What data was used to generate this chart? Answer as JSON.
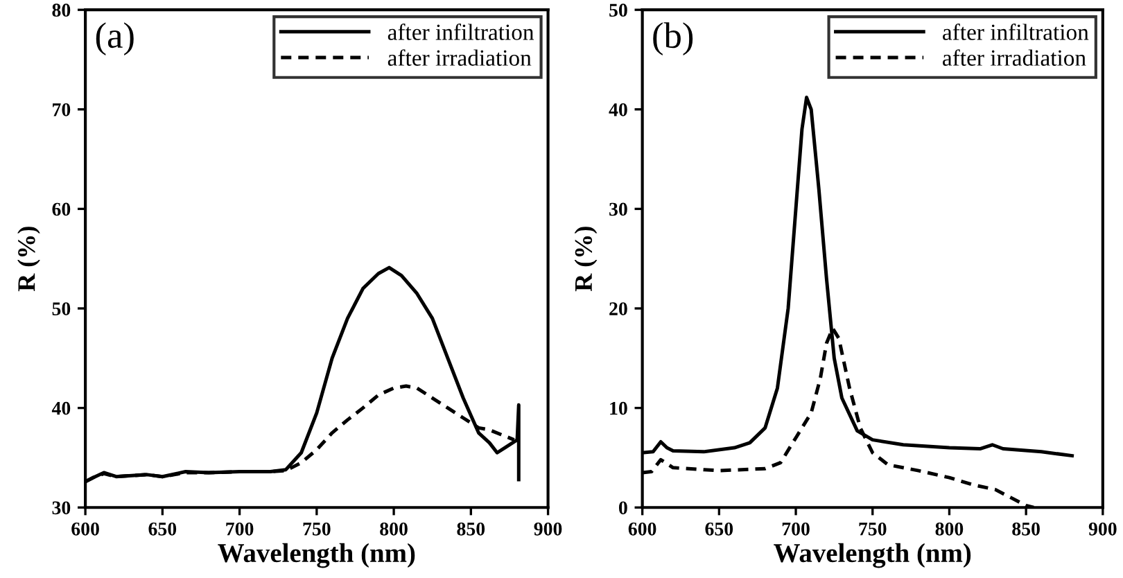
{
  "chart_data": [
    {
      "type": "line",
      "xlabel": "Wavelength (nm)",
      "ylabel": "R (%)",
      "annotations": [
        "(a)"
      ],
      "xlim": [
        600,
        900
      ],
      "xticks": [
        600,
        650,
        700,
        750,
        800,
        850,
        900
      ],
      "ylim": [
        30,
        80
      ],
      "yticks": [
        30,
        40,
        50,
        60,
        70,
        80
      ],
      "legend": "top right",
      "grid": false,
      "series": [
        {
          "name": "after infiltration",
          "color": "#000000",
          "line_style": "solid",
          "x": [
            600,
            605,
            612,
            620,
            640,
            650,
            665,
            680,
            700,
            720,
            730,
            740,
            750,
            760,
            770,
            780,
            790,
            797,
            805,
            815,
            825,
            835,
            845,
            855,
            862,
            867,
            872,
            880,
            881,
            881
          ],
          "values": [
            32.6,
            33,
            33.5,
            33.1,
            33.3,
            33.1,
            33.6,
            33.5,
            33.6,
            33.6,
            33.8,
            35.5,
            39.5,
            45,
            49,
            52,
            53.5,
            54.1,
            53.3,
            51.5,
            49,
            45,
            41,
            37.5,
            36.5,
            35.5,
            36,
            36.8,
            40.3,
            32.8
          ]
        },
        {
          "name": "after irradiation",
          "color": "#000000",
          "line_style": "dashed",
          "x": [
            600,
            605,
            612,
            620,
            640,
            650,
            665,
            680,
            700,
            720,
            730,
            740,
            750,
            760,
            770,
            780,
            790,
            800,
            808,
            815,
            825,
            835,
            845,
            855,
            862,
            870,
            878
          ],
          "values": [
            32.6,
            33,
            33.4,
            33.1,
            33.3,
            33.1,
            33.5,
            33.5,
            33.6,
            33.6,
            33.7,
            34.5,
            35.8,
            37.5,
            38.8,
            40,
            41.3,
            42,
            42.2,
            42,
            41,
            40,
            39,
            38,
            37.8,
            37.3,
            36.8
          ]
        }
      ]
    },
    {
      "type": "line",
      "xlabel": "Wavelength (nm)",
      "ylabel": "R (%)",
      "annotations": [
        "(b)"
      ],
      "xlim": [
        600,
        900
      ],
      "xticks": [
        600,
        650,
        700,
        750,
        800,
        850,
        900
      ],
      "ylim": [
        0,
        50
      ],
      "yticks": [
        0,
        10,
        20,
        30,
        40,
        50
      ],
      "legend": "top right",
      "grid": false,
      "series": [
        {
          "name": "after infiltration",
          "color": "#000000",
          "line_style": "solid",
          "x": [
            600,
            607,
            612,
            616,
            620,
            640,
            660,
            670,
            680,
            688,
            695,
            700,
            704,
            707,
            710,
            715,
            720,
            725,
            730,
            740,
            750,
            770,
            800,
            820,
            828,
            835,
            860,
            880
          ],
          "values": [
            5.5,
            5.6,
            6.6,
            6,
            5.7,
            5.6,
            6,
            6.5,
            8,
            12,
            20,
            30,
            38,
            41.2,
            40,
            32,
            23,
            15,
            11,
            7.7,
            6.8,
            6.3,
            6,
            5.9,
            6.3,
            5.9,
            5.6,
            5.2
          ]
        },
        {
          "name": "after irradiation",
          "color": "#000000",
          "line_style": "dashed",
          "x": [
            600,
            606,
            612,
            620,
            650,
            680,
            690,
            700,
            710,
            716,
            720,
            724,
            728,
            735,
            742,
            750,
            760,
            780,
            800,
            815,
            830,
            840,
            850,
            855
          ],
          "values": [
            3.5,
            3.6,
            4.8,
            4,
            3.7,
            3.9,
            4.5,
            7,
            9.5,
            13,
            16.5,
            18,
            17,
            12,
            8,
            5.5,
            4.3,
            3.7,
            3,
            2.3,
            1.8,
            1.0,
            0.2,
            0
          ]
        }
      ]
    }
  ]
}
